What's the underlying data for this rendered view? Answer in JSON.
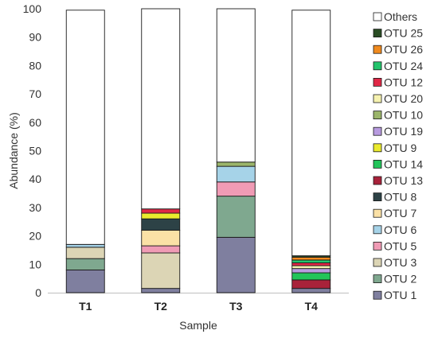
{
  "chart_data": {
    "type": "bar",
    "stacked": true,
    "xlabel": "Sample",
    "ylabel": "Abundance (%)",
    "ylim": [
      0,
      100
    ],
    "yticks": [
      0,
      10,
      20,
      30,
      40,
      50,
      60,
      70,
      80,
      90,
      100
    ],
    "categories": [
      "T1",
      "T2",
      "T3",
      "T4"
    ],
    "legend_position": "right",
    "series": [
      {
        "name": "OTU 1",
        "color": "#7f7f9f",
        "values": [
          8,
          1.5,
          19.5,
          1.5
        ]
      },
      {
        "name": "OTU 2",
        "color": "#7fa88f",
        "values": [
          4,
          0,
          14.5,
          0
        ]
      },
      {
        "name": "OTU 3",
        "color": "#dcd5b5",
        "values": [
          4,
          12.5,
          0,
          0
        ]
      },
      {
        "name": "OTU 5",
        "color": "#f09bb5",
        "values": [
          0,
          2.5,
          5,
          0
        ]
      },
      {
        "name": "OTU 6",
        "color": "#a6d3e8",
        "values": [
          1,
          0,
          5.5,
          0
        ]
      },
      {
        "name": "OTU 7",
        "color": "#fbe1a6",
        "values": [
          0,
          5.5,
          0,
          0
        ]
      },
      {
        "name": "OTU 8",
        "color": "#2d4246",
        "values": [
          0,
          4,
          0,
          0
        ]
      },
      {
        "name": "OTU 13",
        "color": "#a8223a",
        "values": [
          0,
          0,
          0,
          3
        ]
      },
      {
        "name": "OTU 14",
        "color": "#22c45a",
        "values": [
          0,
          0,
          0,
          2.5
        ]
      },
      {
        "name": "OTU 9",
        "color": "#eaea2e",
        "values": [
          0,
          2,
          0,
          0
        ]
      },
      {
        "name": "OTU 19",
        "color": "#b89be0",
        "values": [
          0,
          0,
          0,
          1.5
        ]
      },
      {
        "name": "OTU 10",
        "color": "#9bb56a",
        "values": [
          0,
          0,
          1.5,
          0
        ]
      },
      {
        "name": "OTU 20",
        "color": "#f6f2b0",
        "values": [
          0,
          0,
          0,
          1
        ]
      },
      {
        "name": "OTU 12",
        "color": "#e02846",
        "values": [
          0,
          1.5,
          0,
          1
        ]
      },
      {
        "name": "OTU 24",
        "color": "#23c46c",
        "values": [
          0,
          0,
          0,
          1
        ]
      },
      {
        "name": "OTU 26",
        "color": "#f08a1e",
        "values": [
          0,
          0,
          0,
          1
        ]
      },
      {
        "name": "OTU 25",
        "color": "#2a4d24",
        "values": [
          0,
          0,
          0,
          0.5
        ]
      },
      {
        "name": "Others",
        "color": "#ffffff",
        "values": [
          82.5,
          70.5,
          54,
          86.5
        ]
      }
    ],
    "legend": [
      "Others",
      "OTU 25",
      "OTU 26",
      "OTU 24",
      "OTU 12",
      "OTU 20",
      "OTU 10",
      "OTU 19",
      "OTU 9",
      "OTU 14",
      "OTU 13",
      "OTU 8",
      "OTU 7",
      "OTU 6",
      "OTU 5",
      "OTU 3",
      "OTU 2",
      "OTU 1"
    ]
  }
}
